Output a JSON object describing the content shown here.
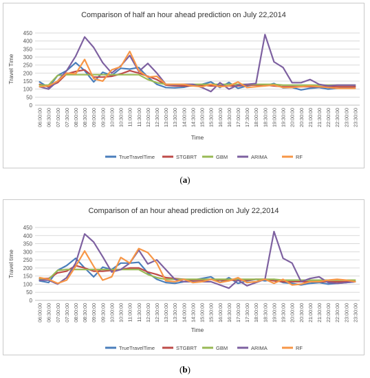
{
  "captions": [
    "(a)",
    "(b)"
  ],
  "caption_letters": [
    "a",
    "b"
  ],
  "chart_data": [
    {
      "type": "line",
      "title": "Comparison of half an hour ahead prediction on July 22,2014",
      "xlabel": "Time",
      "ylabel": "Travel Time",
      "ylim": [
        0,
        450
      ],
      "yticks": [
        "0",
        "50",
        "100",
        "150",
        "200",
        "250",
        "300",
        "350",
        "400",
        "450"
      ],
      "grid": true,
      "legend": "bottom",
      "x": [
        "06:00:00",
        "06:30:00",
        "07:00:00",
        "07:30:00",
        "08:00:00",
        "08:30:00",
        "09:00:00",
        "09:30:00",
        "10:00:00",
        "10:30:00",
        "11:00:00",
        "11:30:00",
        "12:00:00",
        "12:30:00",
        "13:00:00",
        "13:30:00",
        "14:00:00",
        "14:30:00",
        "15:00:00",
        "15:30:00",
        "16:00:00",
        "16:30:00",
        "17:00:00",
        "17:30:00",
        "18:00:00",
        "18:30:00",
        "19:00:00",
        "19:30:00",
        "20:00:00",
        "20:30:00",
        "21:00:00",
        "21:30:00",
        "22:00:00",
        "22:30:00",
        "23:00:00",
        "23:30:00"
      ],
      "series": [
        {
          "name": "TrueTravelTime",
          "color": "#4a7ebb",
          "values": [
            145,
            110,
            185,
            215,
            265,
            215,
            145,
            205,
            185,
            230,
            225,
            235,
            175,
            130,
            110,
            108,
            112,
            125,
            130,
            145,
            110,
            142,
            105,
            120,
            130,
            120,
            135,
            108,
            110,
            95,
            105,
            110,
            100,
            105,
            110,
            115
          ]
        },
        {
          "name": "STGBRT",
          "color": "#be4b48",
          "values": [
            130,
            115,
            140,
            195,
            210,
            220,
            175,
            175,
            180,
            195,
            215,
            200,
            180,
            160,
            125,
            120,
            120,
            120,
            125,
            120,
            120,
            120,
            120,
            125,
            125,
            125,
            120,
            115,
            115,
            115,
            115,
            115,
            115,
            115,
            115,
            115
          ]
        },
        {
          "name": "GBM",
          "color": "#98b954",
          "values": [
            125,
            125,
            185,
            190,
            190,
            190,
            190,
            190,
            190,
            190,
            190,
            190,
            160,
            140,
            130,
            130,
            130,
            130,
            130,
            130,
            130,
            130,
            130,
            130,
            130,
            130,
            130,
            125,
            125,
            125,
            125,
            125,
            125,
            125,
            125,
            125
          ]
        },
        {
          "name": "ARIMA",
          "color": "#7d60a0",
          "values": [
            115,
            100,
            150,
            215,
            305,
            425,
            360,
            265,
            200,
            245,
            310,
            210,
            260,
            200,
            130,
            125,
            130,
            130,
            110,
            85,
            140,
            100,
            125,
            130,
            135,
            440,
            270,
            235,
            140,
            140,
            160,
            130,
            120,
            125,
            125,
            125
          ]
        },
        {
          "name": "RF",
          "color": "#f79646",
          "values": [
            115,
            120,
            150,
            200,
            195,
            285,
            165,
            150,
            220,
            240,
            335,
            215,
            175,
            180,
            130,
            130,
            130,
            120,
            115,
            130,
            115,
            120,
            145,
            110,
            115,
            120,
            125,
            110,
            110,
            115,
            120,
            115,
            110,
            105,
            105,
            105
          ]
        }
      ]
    },
    {
      "type": "line",
      "title": "Comparison of an hour ahead prediction on July 22,2014",
      "xlabel": "Time",
      "ylabel": "Travel time",
      "ylim": [
        0,
        450
      ],
      "yticks": [
        "0",
        "50",
        "100",
        "150",
        "200",
        "250",
        "300",
        "350",
        "400",
        "450"
      ],
      "grid": true,
      "legend": "bottom",
      "x": [
        "06:00:00",
        "06:30:00",
        "07:00:00",
        "07:30:00",
        "08:00:00",
        "08:30:00",
        "09:00:00",
        "09:30:00",
        "10:00:00",
        "10:30:00",
        "11:00:00",
        "11:30:00",
        "12:00:00",
        "12:30:00",
        "13:00:00",
        "13:30:00",
        "14:00:00",
        "14:30:00",
        "15:00:00",
        "15:30:00",
        "16:00:00",
        "16:30:00",
        "17:00:00",
        "17:30:00",
        "18:00:00",
        "18:30:00",
        "19:00:00",
        "19:30:00",
        "20:00:00",
        "20:30:00",
        "21:00:00",
        "21:30:00",
        "22:00:00",
        "22:30:00",
        "23:00:00",
        "23:30:00"
      ],
      "series": [
        {
          "name": "TrueTravelTime",
          "color": "#4a7ebb",
          "values": [
            120,
            110,
            185,
            215,
            260,
            200,
            145,
            205,
            190,
            230,
            230,
            235,
            170,
            130,
            110,
            105,
            115,
            125,
            135,
            145,
            110,
            140,
            105,
            120,
            130,
            120,
            130,
            110,
            105,
            95,
            105,
            110,
            100,
            105,
            110,
            115
          ]
        },
        {
          "name": "STGBRT",
          "color": "#be4b48",
          "values": [
            135,
            135,
            170,
            180,
            215,
            200,
            180,
            180,
            185,
            190,
            200,
            200,
            175,
            160,
            140,
            135,
            130,
            125,
            125,
            130,
            125,
            125,
            125,
            125,
            130,
            130,
            120,
            115,
            115,
            115,
            115,
            115,
            115,
            115,
            115,
            115
          ]
        },
        {
          "name": "GBM",
          "color": "#98b954",
          "values": [
            130,
            130,
            185,
            190,
            190,
            190,
            190,
            190,
            190,
            190,
            190,
            190,
            160,
            140,
            130,
            130,
            130,
            130,
            130,
            130,
            130,
            130,
            130,
            130,
            130,
            130,
            130,
            125,
            125,
            125,
            125,
            125,
            125,
            125,
            125,
            125
          ]
        },
        {
          "name": "ARIMA",
          "color": "#7d60a0",
          "values": [
            125,
            125,
            100,
            140,
            230,
            410,
            360,
            270,
            175,
            190,
            230,
            310,
            225,
            250,
            190,
            130,
            115,
            115,
            115,
            115,
            95,
            75,
            125,
            90,
            110,
            130,
            425,
            260,
            230,
            115,
            135,
            145,
            110,
            105,
            110,
            115
          ]
        },
        {
          "name": "RF",
          "color": "#f79646",
          "values": [
            140,
            130,
            105,
            125,
            210,
            305,
            210,
            125,
            145,
            265,
            230,
            320,
            295,
            230,
            120,
            115,
            130,
            110,
            115,
            130,
            110,
            120,
            140,
            110,
            115,
            130,
            105,
            130,
            95,
            100,
            115,
            115,
            125,
            130,
            125,
            115
          ]
        }
      ]
    }
  ]
}
